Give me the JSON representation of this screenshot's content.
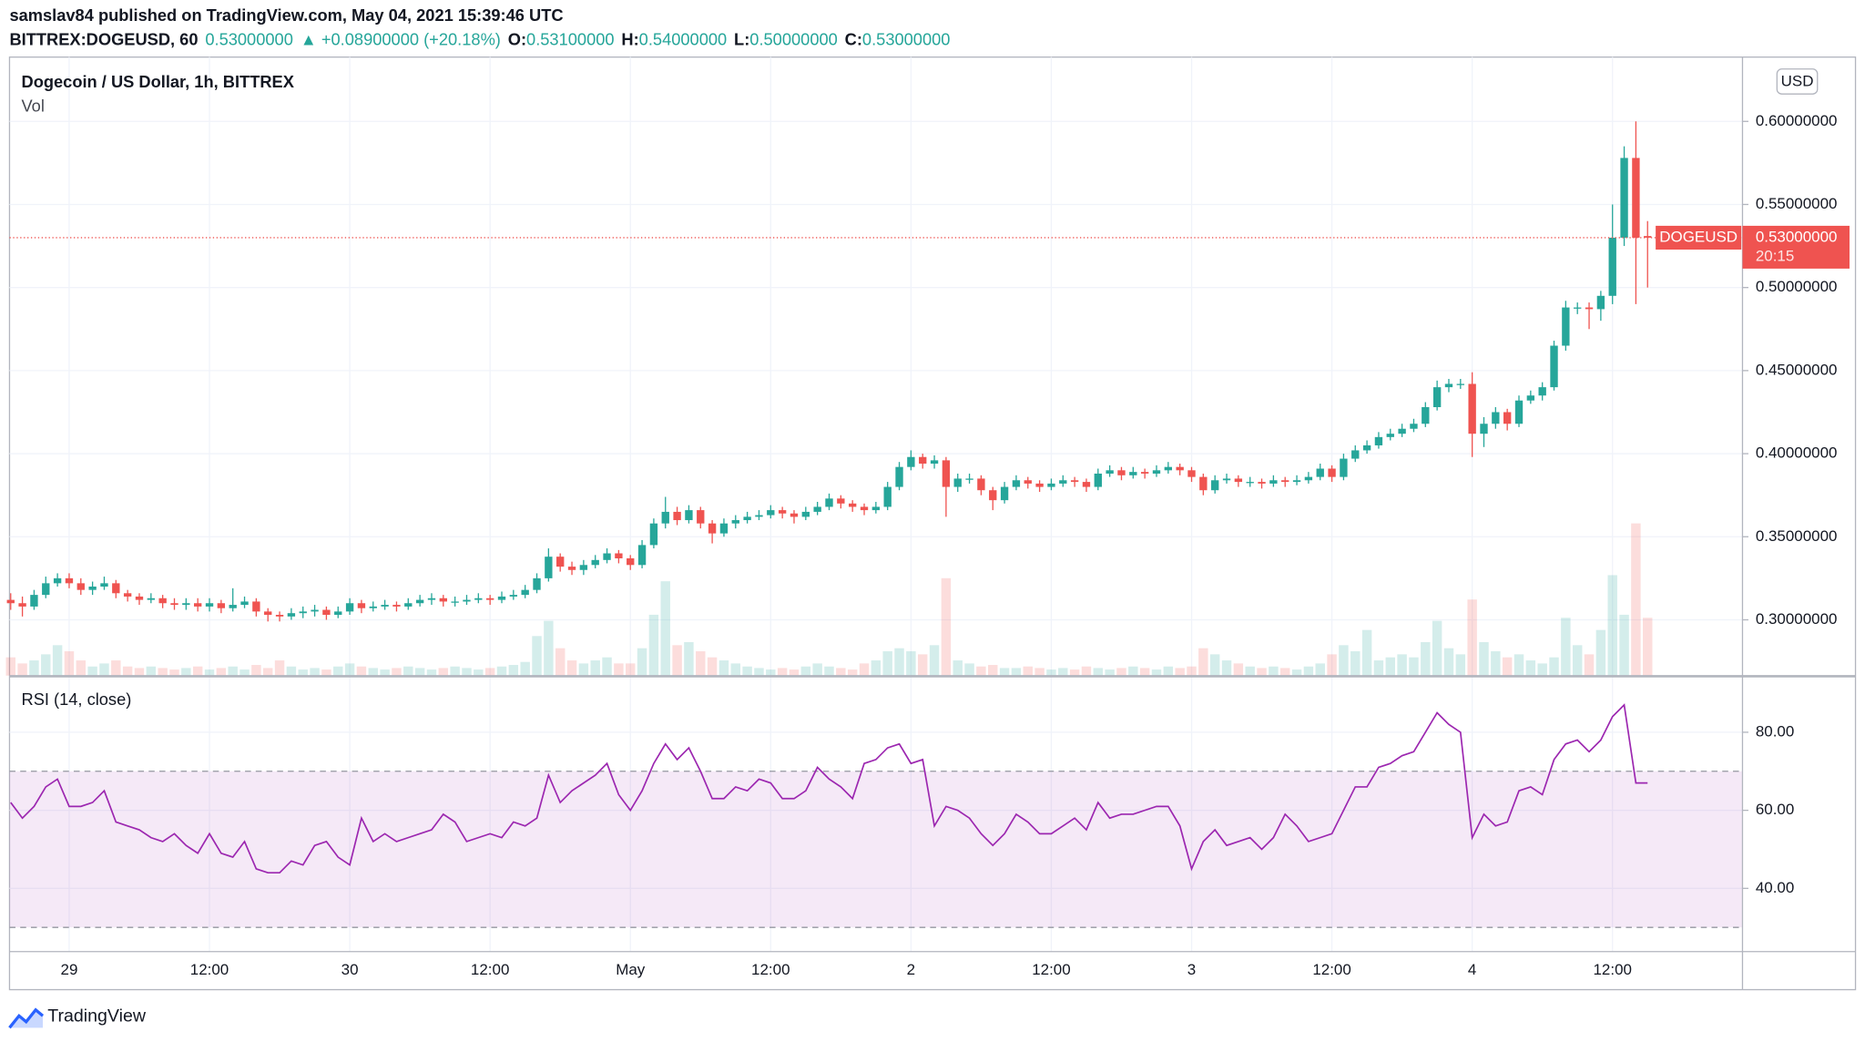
{
  "header": {
    "publisher": "samslav84 published on TradingView.com, May 04, 2021 15:39:46 UTC",
    "symbol": "BITTREX:DOGEUSD, 60",
    "last": "0.53000000",
    "change": "▲ +0.08900000 (+20.18%)",
    "o_label": "O:",
    "o": "0.53100000",
    "h_label": "H:",
    "h": "0.54000000",
    "l_label": "L:",
    "l": "0.50000000",
    "c_label": "C:",
    "c": "0.53000000"
  },
  "legend": {
    "title": "Dogecoin / US Dollar, 1h, BITTREX",
    "vol": "Vol",
    "rsi": "RSI (14, close)",
    "currency": "USD"
  },
  "last_label": {
    "symbol": "DOGEUSD",
    "price": "0.53000000",
    "countdown": "20:15"
  },
  "footer": "TradingView",
  "chart_data": {
    "type": "candlestick",
    "title": "Dogecoin / US Dollar, 1h, BITTREX",
    "up_color": "#26a69a",
    "down_color": "#ef5350",
    "grid": true,
    "categories": [
      null,
      null,
      null,
      null,
      null,
      "29",
      null,
      null,
      null,
      null,
      null,
      null,
      null,
      null,
      null,
      null,
      null,
      "12:00",
      null,
      null,
      null,
      null,
      null,
      null,
      null,
      null,
      null,
      null,
      null,
      "30",
      null,
      null,
      null,
      null,
      null,
      null,
      null,
      null,
      null,
      null,
      null,
      "12:00",
      null,
      null,
      null,
      null,
      null,
      null,
      null,
      null,
      null,
      null,
      null,
      "May",
      null,
      null,
      null,
      null,
      null,
      null,
      null,
      null,
      null,
      null,
      null,
      "12:00",
      null,
      null,
      null,
      null,
      null,
      null,
      null,
      null,
      null,
      null,
      null,
      "2",
      null,
      null,
      null,
      null,
      null,
      null,
      null,
      null,
      null,
      null,
      null,
      "12:00",
      null,
      null,
      null,
      null,
      null,
      null,
      null,
      null,
      null,
      null,
      null,
      "3",
      null,
      null,
      null,
      null,
      null,
      null,
      null,
      null,
      null,
      null,
      null,
      "12:00",
      null,
      null,
      null,
      null,
      null,
      null,
      null,
      null,
      null,
      null,
      null,
      "4",
      null,
      null,
      null,
      null,
      null,
      null,
      null,
      null,
      null,
      null,
      null,
      "12:00",
      null,
      null,
      null
    ],
    "open": [
      0.312,
      0.31,
      0.308,
      0.315,
      0.322,
      0.325,
      0.322,
      0.318,
      0.32,
      0.322,
      0.316,
      0.314,
      0.312,
      0.313,
      0.31,
      0.309,
      0.31,
      0.308,
      0.31,
      0.307,
      0.309,
      0.311,
      0.305,
      0.303,
      0.302,
      0.304,
      0.305,
      0.306,
      0.303,
      0.305,
      0.31,
      0.307,
      0.308,
      0.309,
      0.308,
      0.31,
      0.312,
      0.313,
      0.311,
      0.311,
      0.312,
      0.313,
      0.312,
      0.314,
      0.315,
      0.318,
      0.325,
      0.338,
      0.332,
      0.33,
      0.333,
      0.336,
      0.34,
      0.337,
      0.333,
      0.345,
      0.358,
      0.365,
      0.36,
      0.366,
      0.358,
      0.352,
      0.358,
      0.36,
      0.362,
      0.363,
      0.366,
      0.364,
      0.362,
      0.365,
      0.368,
      0.373,
      0.37,
      0.368,
      0.366,
      0.368,
      0.38,
      0.392,
      0.398,
      0.394,
      0.396,
      0.38,
      0.385,
      0.385,
      0.378,
      0.372,
      0.38,
      0.384,
      0.382,
      0.38,
      0.382,
      0.384,
      0.383,
      0.38,
      0.388,
      0.39,
      0.387,
      0.389,
      0.388,
      0.39,
      0.392,
      0.39,
      0.386,
      0.378,
      0.384,
      0.385,
      0.383,
      0.383,
      0.382,
      0.384,
      0.383,
      0.384,
      0.386,
      0.391,
      0.386,
      0.397,
      0.402,
      0.405,
      0.41,
      0.412,
      0.415,
      0.418,
      0.428,
      0.44,
      0.442,
      0.442,
      0.412,
      0.418,
      0.425,
      0.418,
      0.432,
      0.435,
      0.44,
      0.465,
      0.488,
      0.488,
      0.487,
      0.495,
      0.53,
      0.578,
      0.531
    ],
    "high": [
      0.316,
      0.314,
      0.318,
      0.326,
      0.328,
      0.328,
      0.325,
      0.323,
      0.326,
      0.324,
      0.318,
      0.316,
      0.316,
      0.315,
      0.313,
      0.313,
      0.313,
      0.313,
      0.312,
      0.319,
      0.314,
      0.313,
      0.307,
      0.305,
      0.307,
      0.308,
      0.309,
      0.308,
      0.308,
      0.313,
      0.312,
      0.311,
      0.312,
      0.311,
      0.313,
      0.315,
      0.316,
      0.315,
      0.314,
      0.315,
      0.316,
      0.315,
      0.317,
      0.318,
      0.321,
      0.328,
      0.343,
      0.34,
      0.335,
      0.336,
      0.339,
      0.343,
      0.342,
      0.339,
      0.348,
      0.361,
      0.374,
      0.368,
      0.369,
      0.368,
      0.36,
      0.361,
      0.363,
      0.365,
      0.366,
      0.369,
      0.368,
      0.366,
      0.368,
      0.371,
      0.376,
      0.375,
      0.372,
      0.37,
      0.371,
      0.383,
      0.395,
      0.402,
      0.4,
      0.399,
      0.398,
      0.388,
      0.388,
      0.387,
      0.38,
      0.383,
      0.387,
      0.386,
      0.384,
      0.385,
      0.387,
      0.386,
      0.385,
      0.391,
      0.393,
      0.392,
      0.392,
      0.391,
      0.393,
      0.395,
      0.394,
      0.392,
      0.388,
      0.387,
      0.388,
      0.387,
      0.386,
      0.385,
      0.387,
      0.386,
      0.387,
      0.389,
      0.394,
      0.393,
      0.4,
      0.405,
      0.408,
      0.413,
      0.415,
      0.418,
      0.421,
      0.431,
      0.444,
      0.445,
      0.445,
      0.449,
      0.422,
      0.428,
      0.427,
      0.435,
      0.438,
      0.443,
      0.468,
      0.492,
      0.491,
      0.491,
      0.498,
      0.55,
      0.585,
      0.6,
      0.54
    ],
    "low": [
      0.306,
      0.302,
      0.306,
      0.313,
      0.32,
      0.319,
      0.315,
      0.315,
      0.318,
      0.313,
      0.311,
      0.309,
      0.31,
      0.307,
      0.306,
      0.306,
      0.305,
      0.305,
      0.304,
      0.305,
      0.307,
      0.302,
      0.299,
      0.299,
      0.3,
      0.301,
      0.302,
      0.3,
      0.301,
      0.303,
      0.304,
      0.305,
      0.306,
      0.305,
      0.306,
      0.308,
      0.309,
      0.308,
      0.308,
      0.309,
      0.31,
      0.309,
      0.31,
      0.312,
      0.313,
      0.316,
      0.323,
      0.329,
      0.327,
      0.327,
      0.331,
      0.334,
      0.334,
      0.33,
      0.331,
      0.343,
      0.355,
      0.357,
      0.358,
      0.355,
      0.346,
      0.35,
      0.355,
      0.358,
      0.36,
      0.361,
      0.361,
      0.358,
      0.36,
      0.363,
      0.366,
      0.367,
      0.365,
      0.363,
      0.364,
      0.366,
      0.378,
      0.39,
      0.391,
      0.391,
      0.362,
      0.377,
      0.382,
      0.375,
      0.366,
      0.37,
      0.378,
      0.379,
      0.377,
      0.378,
      0.38,
      0.38,
      0.377,
      0.378,
      0.386,
      0.384,
      0.385,
      0.385,
      0.386,
      0.388,
      0.387,
      0.383,
      0.375,
      0.376,
      0.382,
      0.38,
      0.38,
      0.379,
      0.38,
      0.38,
      0.381,
      0.382,
      0.384,
      0.383,
      0.384,
      0.395,
      0.4,
      0.403,
      0.408,
      0.41,
      0.413,
      0.416,
      0.426,
      0.437,
      0.439,
      0.398,
      0.404,
      0.415,
      0.414,
      0.416,
      0.43,
      0.432,
      0.438,
      0.462,
      0.484,
      0.475,
      0.48,
      0.49,
      0.525,
      0.49,
      0.5
    ],
    "close": [
      0.31,
      0.308,
      0.315,
      0.322,
      0.325,
      0.322,
      0.318,
      0.32,
      0.322,
      0.316,
      0.314,
      0.312,
      0.313,
      0.31,
      0.309,
      0.31,
      0.308,
      0.31,
      0.307,
      0.309,
      0.311,
      0.305,
      0.303,
      0.302,
      0.304,
      0.305,
      0.306,
      0.303,
      0.305,
      0.31,
      0.307,
      0.308,
      0.309,
      0.308,
      0.31,
      0.312,
      0.313,
      0.311,
      0.311,
      0.312,
      0.313,
      0.312,
      0.314,
      0.315,
      0.318,
      0.325,
      0.338,
      0.332,
      0.33,
      0.333,
      0.336,
      0.34,
      0.337,
      0.333,
      0.345,
      0.358,
      0.365,
      0.36,
      0.366,
      0.358,
      0.352,
      0.358,
      0.36,
      0.362,
      0.363,
      0.366,
      0.364,
      0.362,
      0.365,
      0.368,
      0.373,
      0.37,
      0.368,
      0.366,
      0.368,
      0.38,
      0.392,
      0.398,
      0.394,
      0.396,
      0.38,
      0.385,
      0.385,
      0.378,
      0.372,
      0.38,
      0.384,
      0.382,
      0.38,
      0.382,
      0.384,
      0.383,
      0.38,
      0.388,
      0.39,
      0.387,
      0.389,
      0.388,
      0.39,
      0.392,
      0.39,
      0.386,
      0.378,
      0.384,
      0.385,
      0.383,
      0.383,
      0.382,
      0.384,
      0.383,
      0.384,
      0.386,
      0.391,
      0.386,
      0.397,
      0.402,
      0.405,
      0.41,
      0.412,
      0.415,
      0.418,
      0.428,
      0.44,
      0.442,
      0.442,
      0.412,
      0.418,
      0.425,
      0.418,
      0.432,
      0.435,
      0.44,
      0.465,
      0.488,
      0.488,
      0.487,
      0.495,
      0.53,
      0.578,
      0.53,
      0.53
    ],
    "volume": [
      12,
      8,
      10,
      14,
      20,
      16,
      10,
      6,
      8,
      10,
      6,
      5,
      6,
      5,
      4,
      5,
      6,
      4,
      5,
      6,
      4,
      7,
      5,
      10,
      6,
      4,
      5,
      4,
      6,
      8,
      6,
      5,
      4,
      5,
      6,
      5,
      4,
      5,
      6,
      5,
      4,
      5,
      6,
      7,
      9,
      26,
      36,
      18,
      10,
      8,
      10,
      12,
      8,
      8,
      18,
      40,
      62,
      20,
      22,
      16,
      12,
      10,
      8,
      6,
      5,
      4,
      5,
      4,
      6,
      8,
      6,
      5,
      4,
      8,
      10,
      16,
      18,
      16,
      14,
      20,
      64,
      10,
      8,
      6,
      7,
      5,
      5,
      6,
      5,
      4,
      5,
      4,
      6,
      5,
      4,
      5,
      6,
      5,
      4,
      6,
      5,
      6,
      18,
      14,
      10,
      8,
      6,
      5,
      6,
      5,
      4,
      6,
      8,
      14,
      20,
      16,
      30,
      10,
      12,
      14,
      12,
      22,
      36,
      18,
      14,
      50,
      22,
      16,
      12,
      14,
      10,
      8,
      12,
      38,
      20,
      14,
      30,
      66,
      40,
      100,
      38
    ],
    "ylim": [
      0.2664,
      0.6387
    ],
    "yticks": [
      {
        "value": 0.3,
        "label": "0.30000000"
      },
      {
        "value": 0.35,
        "label": "0.35000000"
      },
      {
        "value": 0.4,
        "label": "0.40000000"
      },
      {
        "value": 0.45,
        "label": "0.45000000"
      },
      {
        "value": 0.5,
        "label": "0.50000000"
      },
      {
        "value": 0.55,
        "label": "0.55000000"
      },
      {
        "value": 0.6,
        "label": "0.60000000"
      }
    ],
    "rsi": {
      "name": "RSI (14, close)",
      "color": "#9c27b0",
      "values": [
        62,
        58,
        61,
        66,
        68,
        61,
        61,
        62,
        65,
        57,
        56,
        55,
        53,
        52,
        54,
        51,
        49,
        54,
        49,
        48,
        52,
        45,
        44,
        44,
        47,
        46,
        51,
        52,
        48,
        46,
        58,
        52,
        54,
        52,
        53,
        54,
        55,
        59,
        57,
        52,
        53,
        54,
        53,
        57,
        56,
        58,
        69,
        62,
        65,
        67,
        69,
        72,
        64,
        60,
        65,
        72,
        77,
        73,
        76,
        70,
        63,
        63,
        66,
        65,
        68,
        67,
        63,
        63,
        65,
        71,
        68,
        66,
        63,
        72,
        73,
        76,
        77,
        72,
        73,
        56,
        61,
        60,
        58,
        54,
        51,
        54,
        59,
        57,
        54,
        54,
        56,
        58,
        55,
        62,
        58,
        59,
        59,
        60,
        61,
        61,
        56,
        45,
        52,
        55,
        51,
        52,
        53,
        50,
        53,
        59,
        56,
        52,
        53,
        54,
        60,
        66,
        66,
        71,
        72,
        74,
        75,
        80,
        85,
        82,
        80,
        53,
        59,
        56,
        57,
        65,
        66,
        64,
        73,
        77,
        78,
        75,
        78,
        84,
        87,
        67,
        67
      ],
      "band": [
        30,
        70
      ],
      "y2lim": [
        23.8,
        94.2
      ],
      "y2ticks": [
        {
          "value": 40,
          "label": "40.00"
        },
        {
          "value": 60,
          "label": "60.00"
        },
        {
          "value": 80,
          "label": "80.00"
        }
      ]
    }
  }
}
